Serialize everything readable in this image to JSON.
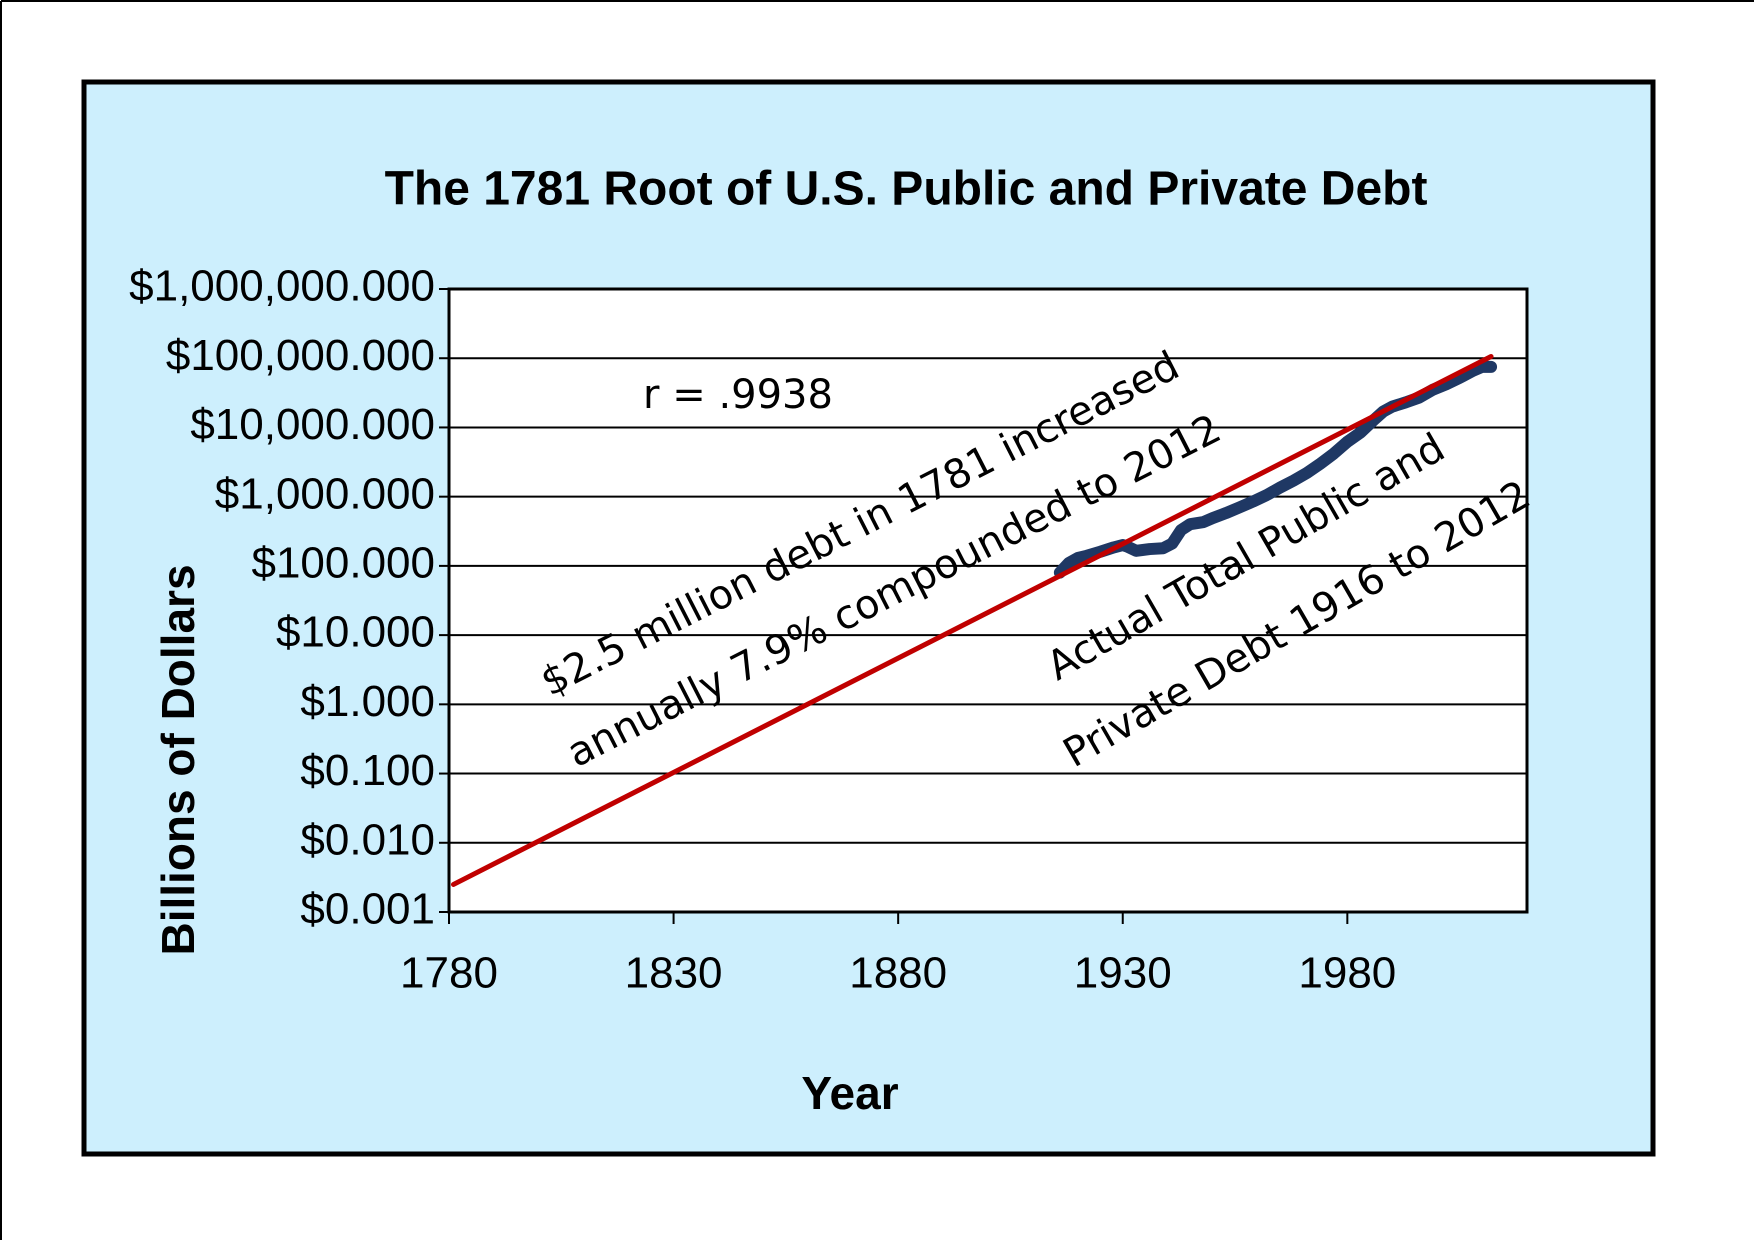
{
  "chart_data": {
    "type": "line",
    "title": "The 1781 Root of U.S. Public and Private Debt",
    "x_label": "Year",
    "y_label": "Billions of Dollars",
    "log_y": true,
    "grid": true,
    "xlim": [
      1780,
      2020
    ],
    "xticks": [
      1780,
      1830,
      1880,
      1930,
      1980
    ],
    "ylim": [
      0.001,
      1000000
    ],
    "yticks": [
      {
        "value": 0.001,
        "label": "$0.001"
      },
      {
        "value": 0.01,
        "label": "$0.010"
      },
      {
        "value": 0.1,
        "label": "$0.100"
      },
      {
        "value": 1,
        "label": "$1.000"
      },
      {
        "value": 10,
        "label": "$10.000"
      },
      {
        "value": 100,
        "label": "$100.000"
      },
      {
        "value": 1000,
        "label": "$1,000.000"
      },
      {
        "value": 10000,
        "label": "$10,000.000"
      },
      {
        "value": 100000,
        "label": "$100,000.000"
      },
      {
        "value": 1000000,
        "label": "$1,000,000.000"
      }
    ],
    "series": [
      {
        "color": "#1f3864",
        "x": [
          1916,
          1918,
          1920,
          1922,
          1925,
          1928,
          1930,
          1931,
          1933,
          1936,
          1939,
          1941,
          1943,
          1945,
          1948,
          1950,
          1953,
          1956,
          1959,
          1962,
          1965,
          1968,
          1971,
          1974,
          1977,
          1980,
          1983,
          1986,
          1988,
          1990,
          1993,
          1996,
          1999,
          2002,
          2005,
          2008,
          2010,
          2012
        ],
        "values": [
          80,
          110,
          130,
          140,
          160,
          185,
          200,
          190,
          165,
          175,
          180,
          210,
          330,
          400,
          430,
          490,
          580,
          700,
          850,
          1050,
          1350,
          1700,
          2200,
          3000,
          4200,
          6200,
          8500,
          13000,
          17000,
          20000,
          23000,
          27000,
          35000,
          42000,
          52000,
          66000,
          75000,
          75000
        ]
      },
      {
        "color": "#c00000",
        "x": [
          1781,
          2012
        ],
        "values": [
          0.0025,
          106000
        ]
      }
    ],
    "annotations": [
      "r = .9938",
      "$2.5 million debt in 1781 increased",
      "annually 7.9% compounded to 2012",
      "Actual Total Public and",
      "Private Debt 1916 to 2012"
    ]
  }
}
